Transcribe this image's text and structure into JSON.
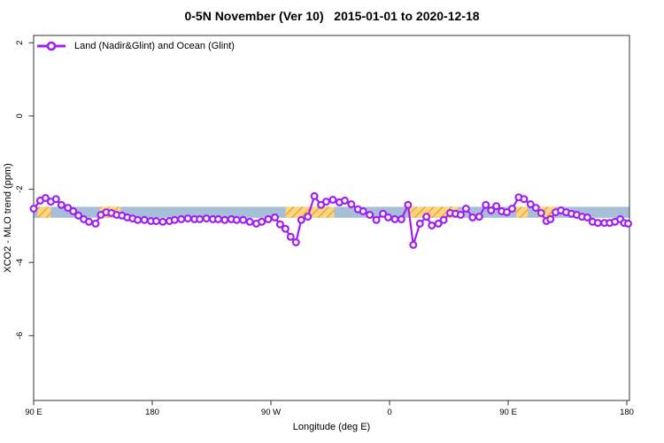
{
  "figure": {
    "title": "0-5N November (Ver 10)   2015-01-01 to 2020-12-18",
    "legend_label": "Land (Nadir&Glint) and Ocean (Glint)"
  },
  "chart_data": {
    "type": "line",
    "title": "0-5N November (Ver 10)   2015-01-01 to 2020-12-18",
    "xlabel": "Longitude (deg E)",
    "ylabel": "XCO2 - MLO trend (ppm)",
    "xlim": [
      90,
      542
    ],
    "ylim": [
      -7.77,
      2.2
    ],
    "grid": false,
    "legend_position": "top-left-inside",
    "x_ticks": [
      {
        "value": 90,
        "label": "90 E"
      },
      {
        "value": 180,
        "label": "180"
      },
      {
        "value": 270,
        "label": "90 W"
      },
      {
        "value": 360,
        "label": "0"
      },
      {
        "value": 450,
        "label": "90 E"
      },
      {
        "value": 540,
        "label": "180"
      }
    ],
    "y_ticks": [
      {
        "value": 2,
        "label": "2"
      },
      {
        "value": 0,
        "label": "0"
      },
      {
        "value": -2,
        "label": "-2"
      },
      {
        "value": -4,
        "label": "-4"
      },
      {
        "value": -6,
        "label": "-6"
      }
    ],
    "band": {
      "description": "horizontal reference band with hatched highlight segments",
      "y_range": [
        -2.48,
        -2.78
      ],
      "x_range": [
        90,
        542
      ],
      "color": "#A7BED8",
      "highlight_color": "#FBD681",
      "hatch_color": "#F0A43C",
      "highlight_segments": [
        [
          93,
          103
        ],
        [
          140,
          156
        ],
        [
          281,
          318
        ],
        [
          375,
          412
        ],
        [
          456,
          465
        ],
        [
          472,
          486
        ]
      ]
    },
    "series": [
      {
        "name": "Land (Nadir&Glint) and Ocean (Glint)",
        "color": "#A020F0",
        "marker": "open-circle",
        "points": [
          [
            90,
            -2.53
          ],
          [
            95,
            -2.31
          ],
          [
            99,
            -2.24
          ],
          [
            103,
            -2.34
          ],
          [
            107,
            -2.27
          ],
          [
            111,
            -2.43
          ],
          [
            116,
            -2.51
          ],
          [
            120,
            -2.6
          ],
          [
            124,
            -2.72
          ],
          [
            128,
            -2.82
          ],
          [
            132,
            -2.89
          ],
          [
            137,
            -2.94
          ],
          [
            141,
            -2.7
          ],
          [
            145,
            -2.63
          ],
          [
            149,
            -2.65
          ],
          [
            153,
            -2.7
          ],
          [
            157,
            -2.72
          ],
          [
            161,
            -2.77
          ],
          [
            165,
            -2.8
          ],
          [
            169,
            -2.84
          ],
          [
            174,
            -2.84
          ],
          [
            179,
            -2.87
          ],
          [
            183,
            -2.87
          ],
          [
            188,
            -2.89
          ],
          [
            193,
            -2.87
          ],
          [
            197,
            -2.84
          ],
          [
            202,
            -2.82
          ],
          [
            207,
            -2.8
          ],
          [
            212,
            -2.82
          ],
          [
            216,
            -2.82
          ],
          [
            221,
            -2.8
          ],
          [
            226,
            -2.82
          ],
          [
            230,
            -2.82
          ],
          [
            235,
            -2.84
          ],
          [
            240,
            -2.82
          ],
          [
            244,
            -2.84
          ],
          [
            249,
            -2.84
          ],
          [
            254,
            -2.89
          ],
          [
            259,
            -2.94
          ],
          [
            263,
            -2.89
          ],
          [
            268,
            -2.82
          ],
          [
            273,
            -2.77
          ],
          [
            277,
            -2.96
          ],
          [
            281,
            -3.08
          ],
          [
            285,
            -3.3
          ],
          [
            289,
            -3.45
          ],
          [
            293,
            -2.84
          ],
          [
            298,
            -2.75
          ],
          [
            303,
            -2.19
          ],
          [
            308,
            -2.43
          ],
          [
            312,
            -2.34
          ],
          [
            317,
            -2.29
          ],
          [
            322,
            -2.36
          ],
          [
            326,
            -2.31
          ],
          [
            331,
            -2.41
          ],
          [
            336,
            -2.55
          ],
          [
            340,
            -2.6
          ],
          [
            345,
            -2.7
          ],
          [
            350,
            -2.84
          ],
          [
            355,
            -2.67
          ],
          [
            359,
            -2.77
          ],
          [
            364,
            -2.82
          ],
          [
            369,
            -2.82
          ],
          [
            374,
            -2.43
          ],
          [
            378,
            -3.52
          ],
          [
            383,
            -2.94
          ],
          [
            388,
            -2.75
          ],
          [
            392,
            -2.99
          ],
          [
            397,
            -2.94
          ],
          [
            401,
            -2.84
          ],
          [
            406,
            -2.65
          ],
          [
            410,
            -2.67
          ],
          [
            414,
            -2.7
          ],
          [
            418,
            -2.53
          ],
          [
            423,
            -2.77
          ],
          [
            428,
            -2.75
          ],
          [
            433,
            -2.43
          ],
          [
            437,
            -2.58
          ],
          [
            441,
            -2.46
          ],
          [
            445,
            -2.6
          ],
          [
            449,
            -2.63
          ],
          [
            453,
            -2.53
          ],
          [
            458,
            -2.22
          ],
          [
            462,
            -2.27
          ],
          [
            467,
            -2.41
          ],
          [
            471,
            -2.51
          ],
          [
            475,
            -2.65
          ],
          [
            479,
            -2.87
          ],
          [
            482,
            -2.82
          ],
          [
            486,
            -2.63
          ],
          [
            490,
            -2.58
          ],
          [
            494,
            -2.63
          ],
          [
            498,
            -2.67
          ],
          [
            502,
            -2.7
          ],
          [
            506,
            -2.75
          ],
          [
            510,
            -2.77
          ],
          [
            514,
            -2.89
          ],
          [
            518,
            -2.92
          ],
          [
            523,
            -2.92
          ],
          [
            527,
            -2.92
          ],
          [
            531,
            -2.89
          ],
          [
            535,
            -2.82
          ],
          [
            538,
            -2.92
          ],
          [
            541,
            -2.94
          ]
        ]
      }
    ]
  }
}
